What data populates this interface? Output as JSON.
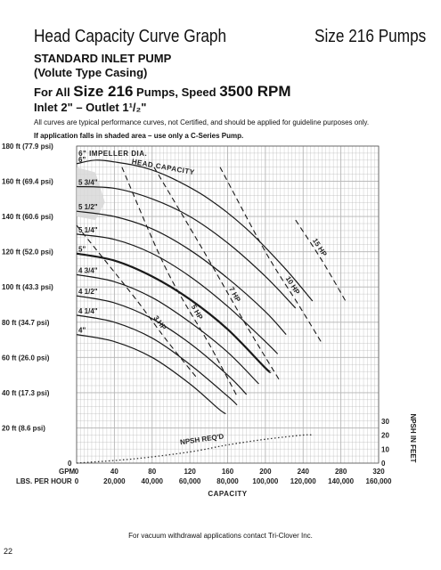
{
  "document": {
    "title": "Head Capacity Curve Graph",
    "size_label": "Size 216 Pumps",
    "subtitle1": "STANDARD INLET PUMP",
    "subtitle2": "(Volute Type Casing)",
    "for_all_prefix": "For All ",
    "for_all_size": "Size 216",
    "for_all_middle": " Pumps, Speed ",
    "for_all_speed": "3500 RPM",
    "inlet_outlet": "Inlet 2\" – Outlet 1¹/₂\"",
    "note_typical": "All curves are typical performance curves, not Certified, and should be applied for guideline purposes only.",
    "note_shaded": "If application falls in shaded area – use only a C-Series Pump.",
    "footer_note": "For vacuum withdrawal applications contact Tri-Clover Inc.",
    "page_number": "22"
  },
  "colors": {
    "curve": "#1a1a1a",
    "grid": "#b5b5b5",
    "shade": "#d8d8d8",
    "npsh": "#333333"
  },
  "chart_data": {
    "type": "line",
    "title": "",
    "xlabel": "CAPACITY",
    "x_unit_labels": [
      "GPM",
      "LBS. PER HOUR"
    ],
    "xlim": [
      0,
      320
    ],
    "x_ticks": [
      {
        "gpm": "0",
        "lbs": "0"
      },
      {
        "gpm": "40",
        "lbs": "20,000"
      },
      {
        "gpm": "80",
        "lbs": "40,000"
      },
      {
        "gpm": "120",
        "lbs": "60,000"
      },
      {
        "gpm": "160",
        "lbs": "80,000"
      },
      {
        "gpm": "200",
        "lbs": "100,000"
      },
      {
        "gpm": "240",
        "lbs": "120,000"
      },
      {
        "gpm": "280",
        "lbs": "140,000"
      },
      {
        "gpm": "320",
        "lbs": "160,000"
      }
    ],
    "ylabel": "",
    "ylim": [
      0,
      180
    ],
    "y_ticks": [
      {
        "value": 180,
        "label": "180 ft  (77.9 psi)"
      },
      {
        "value": 160,
        "label": "160 ft (69.4 psi)"
      },
      {
        "value": 140,
        "label": "140 ft (60.6 psi)"
      },
      {
        "value": 120,
        "label": "120 ft (52.0 psi)"
      },
      {
        "value": 100,
        "label": "100 ft  (43.3 psi)"
      },
      {
        "value": 80,
        "label": "80 ft  (34.7 psi)"
      },
      {
        "value": 60,
        "label": "60 ft  (26.0 psi)"
      },
      {
        "value": 40,
        "label": "40 ft  (17.3 psi)"
      },
      {
        "value": 20,
        "label": "20 ft  (8.6 psi)"
      },
      {
        "value": 0,
        "label": "0"
      }
    ],
    "y2label": "NPSH IN FEET",
    "y2lim": [
      0,
      40
    ],
    "y2_ticks": [
      "0",
      "10",
      "20",
      "30"
    ],
    "annotation_impeller": "6\" IMPELLER DIA.",
    "annotation_head": "HEAD CAPACITY",
    "grid": true,
    "series": [
      {
        "name": "6\"",
        "x": [
          0,
          20,
          40,
          70,
          100,
          140,
          180,
          220,
          250
        ],
        "y": [
          170,
          172,
          171,
          168,
          162,
          150,
          133,
          111,
          92
        ]
      },
      {
        "name": "5 3/4\"",
        "x": [
          0,
          40,
          80,
          120,
          160,
          200,
          232
        ],
        "y": [
          157,
          156,
          150,
          140,
          125,
          106,
          88
        ]
      },
      {
        "name": "5 1/2\"",
        "x": [
          0,
          40,
          80,
          120,
          160,
          200,
          222
        ],
        "y": [
          143,
          140,
          133,
          121,
          105,
          86,
          73
        ]
      },
      {
        "name": "5 1/4\"",
        "x": [
          0,
          40,
          80,
          120,
          160,
          200,
          213
        ],
        "y": [
          130,
          127,
          119,
          106,
          89,
          69,
          62
        ]
      },
      {
        "name": "5\"",
        "x": [
          0,
          40,
          80,
          120,
          160,
          200,
          205
        ],
        "y": [
          119,
          115,
          106,
          93,
          76,
          54,
          52
        ]
      },
      {
        "name": "4 3/4\"",
        "x": [
          0,
          40,
          80,
          120,
          160,
          193
        ],
        "y": [
          107,
          103,
          94,
          80,
          63,
          45
        ]
      },
      {
        "name": "4 1/2\"",
        "x": [
          0,
          40,
          80,
          120,
          160,
          180
        ],
        "y": [
          95,
          91,
          82,
          68,
          50,
          39
        ]
      },
      {
        "name": "4 1/4\"",
        "x": [
          0,
          40,
          80,
          120,
          160,
          170
        ],
        "y": [
          84,
          80,
          71,
          56,
          38,
          33
        ]
      },
      {
        "name": "4\"",
        "x": [
          0,
          40,
          80,
          120,
          150,
          158
        ],
        "y": [
          73,
          69,
          60,
          45,
          31,
          28
        ]
      }
    ],
    "horsepower_lines": [
      {
        "label": "3 HP",
        "x": [
          0,
          60,
          95,
          128
        ],
        "y": [
          135,
          95,
          70,
          48
        ]
      },
      {
        "label": "5 HP",
        "x": [
          48,
          95,
          140,
          170
        ],
        "y": [
          168,
          110,
          68,
          38
        ]
      },
      {
        "label": "7 HP",
        "x": [
          82,
          135,
          180,
          215
        ],
        "y": [
          168,
          120,
          78,
          47
        ]
      },
      {
        "label": "10 HP",
        "x": [
          152,
          200,
          235,
          260
        ],
        "y": [
          168,
          120,
          90,
          68
        ]
      },
      {
        "label": "15 HP",
        "x": [
          232,
          260,
          285
        ],
        "y": [
          138,
          115,
          92
        ]
      }
    ],
    "npsh_required": {
      "label": "NPSH REQ'D",
      "x": [
        0,
        60,
        120,
        160,
        200,
        240,
        250
      ],
      "y": [
        0,
        3,
        8,
        13,
        17,
        20,
        20
      ]
    },
    "shaded_region": {
      "x": [
        0,
        20,
        30,
        20,
        0
      ],
      "y": [
        168,
        165,
        148,
        138,
        140
      ]
    }
  }
}
